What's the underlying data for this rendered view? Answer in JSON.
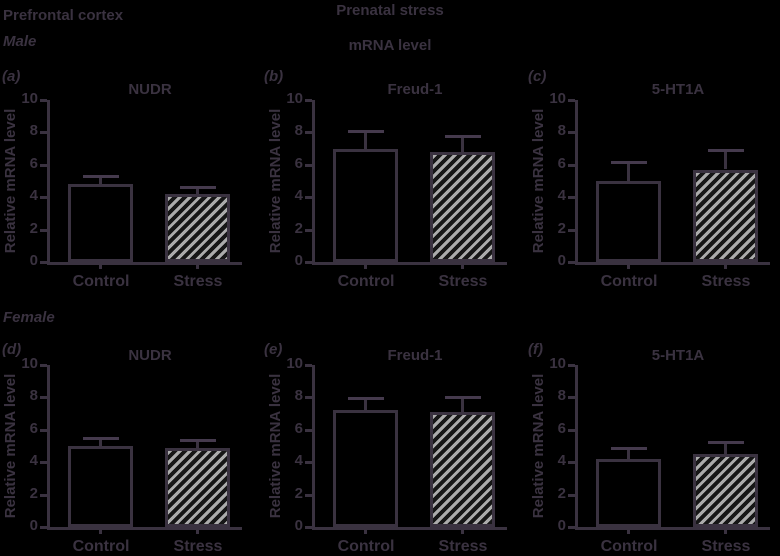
{
  "header": {
    "region": "Prefrontal cortex",
    "title": "Prenatal stress",
    "subtitle": "mRNA level",
    "male_label": "Male",
    "female_label": "Female"
  },
  "figure": {
    "ylabel": "Relative mRNA level",
    "yticks": [
      0,
      2,
      4,
      6,
      8,
      10
    ],
    "ylim": [
      0,
      10
    ],
    "categories": [
      "Control",
      "Stress"
    ],
    "grid": false,
    "legend": "none"
  },
  "chart_data": [
    {
      "type": "bar",
      "panel_label": "(a)",
      "group": "Male",
      "title": "NUDR",
      "categories": [
        "Control",
        "Stress"
      ],
      "values": [
        4.8,
        4.2
      ],
      "errors_plus": [
        0.5,
        0.45
      ],
      "ylabel": "Relative mRNA level",
      "ylim": [
        0,
        10
      ]
    },
    {
      "type": "bar",
      "panel_label": "(b)",
      "group": "Male",
      "title": "Freud-1",
      "categories": [
        "Control",
        "Stress"
      ],
      "values": [
        7.0,
        6.8
      ],
      "errors_plus": [
        1.1,
        1.0
      ],
      "ylabel": "Relative mRNA level",
      "ylim": [
        0,
        10
      ]
    },
    {
      "type": "bar",
      "panel_label": "(c)",
      "group": "Male",
      "title": "5-HT1A",
      "categories": [
        "Control",
        "Stress"
      ],
      "values": [
        5.0,
        5.7
      ],
      "errors_plus": [
        1.2,
        1.2
      ],
      "ylabel": "Relative mRNA level",
      "ylim": [
        0,
        10
      ]
    },
    {
      "type": "bar",
      "panel_label": "(d)",
      "group": "Female",
      "title": "NUDR",
      "categories": [
        "Control",
        "Stress"
      ],
      "values": [
        5.0,
        4.9
      ],
      "errors_plus": [
        0.5,
        0.5
      ],
      "ylabel": "Relative mRNA level",
      "ylim": [
        0,
        10
      ]
    },
    {
      "type": "bar",
      "panel_label": "(e)",
      "group": "Female",
      "title": "Freud-1",
      "categories": [
        "Control",
        "Stress"
      ],
      "values": [
        7.2,
        7.1
      ],
      "errors_plus": [
        0.75,
        0.95
      ],
      "ylabel": "Relative mRNA level",
      "ylim": [
        0,
        10
      ]
    },
    {
      "type": "bar",
      "panel_label": "(f)",
      "group": "Female",
      "title": "5-HT1A",
      "categories": [
        "Control",
        "Stress"
      ],
      "values": [
        4.2,
        4.5
      ],
      "errors_plus": [
        0.7,
        0.75
      ],
      "ylabel": "Relative mRNA level",
      "ylim": [
        0,
        10
      ]
    }
  ],
  "colors": {
    "background": "#000000",
    "ink": "#3a3240",
    "error_cap": "#453a4d",
    "hatch_light": "#ababab",
    "hatch_dark": "#161616"
  }
}
